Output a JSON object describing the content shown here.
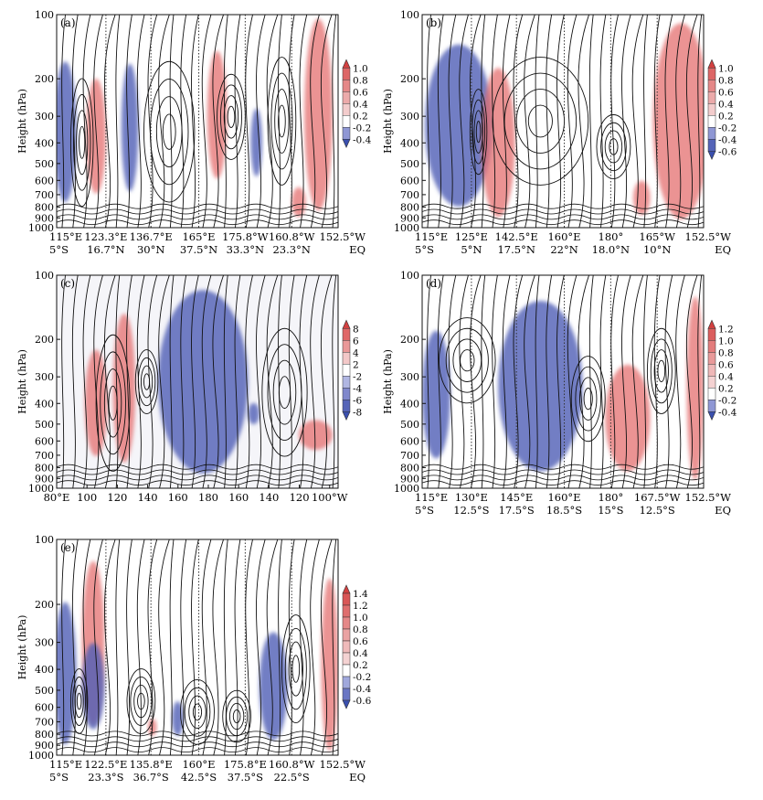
{
  "chart_data": [
    {
      "id": "a",
      "panel_label": "(a)",
      "type": "vertical-cross-section",
      "ylabel": "Height (hPa)",
      "y_ticks": [
        "100",
        "200",
        "300",
        "400",
        "500",
        "600",
        "700",
        "800",
        "900",
        "1000"
      ],
      "x_labels": [
        [
          "115°E",
          "5°S"
        ],
        [
          "123.3°E",
          "16.7°N"
        ],
        [
          "136.7°E",
          "30°N"
        ],
        [
          "165°E",
          "37.5°N"
        ],
        [
          "175.8°W",
          "33.3°N"
        ],
        [
          "160.8°W",
          "23.3°N"
        ],
        [
          "152.5°W",
          "EQ"
        ]
      ],
      "colorbar": [
        "1.0",
        "0.8",
        "0.6",
        "0.4",
        "0.2",
        "-0.2",
        "-0.4"
      ]
    },
    {
      "id": "b",
      "panel_label": "(b)",
      "type": "vertical-cross-section",
      "ylabel": "Height (hPa)",
      "y_ticks": [
        "100",
        "200",
        "300",
        "400",
        "500",
        "600",
        "700",
        "800",
        "900",
        "1000"
      ],
      "x_labels": [
        [
          "115°E",
          "5°S"
        ],
        [
          "125°E",
          "5°N"
        ],
        [
          "142.5°E",
          "17.5°N"
        ],
        [
          "160°E",
          "22°N"
        ],
        [
          "180°",
          "18.0°N"
        ],
        [
          "165°W",
          "10°N"
        ],
        [
          "152.5°W",
          "EQ"
        ]
      ],
      "colorbar": [
        "1.0",
        "0.8",
        "0.6",
        "0.4",
        "0.2",
        "-0.2",
        "-0.4",
        "-0.6"
      ]
    },
    {
      "id": "c",
      "panel_label": "(c)",
      "type": "vertical-cross-section",
      "ylabel": "Height (hPa)",
      "y_ticks": [
        "100",
        "200",
        "300",
        "400",
        "500",
        "600",
        "700",
        "800",
        "900",
        "1000"
      ],
      "x_ticks": [
        "80°E",
        "100",
        "120",
        "140",
        "160",
        "180",
        "160",
        "140",
        "120",
        "100°W"
      ],
      "colorbar": [
        "8",
        "6",
        "4",
        "2",
        "-2",
        "-4",
        "-6",
        "-8"
      ]
    },
    {
      "id": "d",
      "panel_label": "(d)",
      "type": "vertical-cross-section",
      "ylabel": "Height (hPa)",
      "y_ticks": [
        "100",
        "200",
        "300",
        "400",
        "500",
        "600",
        "700",
        "800",
        "900",
        "1000"
      ],
      "x_labels": [
        [
          "115°E",
          "5°S"
        ],
        [
          "130°E",
          "12.5°S"
        ],
        [
          "145°E",
          "17.5°S"
        ],
        [
          "160°E",
          "18.5°S"
        ],
        [
          "180°",
          "15°S"
        ],
        [
          "167.5°W",
          "12.5°S"
        ],
        [
          "152.5°W",
          "EQ"
        ]
      ],
      "colorbar": [
        "1.2",
        "1.0",
        "0.8",
        "0.6",
        "0.4",
        "0.2",
        "-0.2",
        "-0.4"
      ]
    },
    {
      "id": "e",
      "panel_label": "(e)",
      "type": "vertical-cross-section",
      "ylabel": "Height (hPa)",
      "y_ticks": [
        "100",
        "200",
        "300",
        "400",
        "500",
        "600",
        "700",
        "800",
        "900",
        "1000"
      ],
      "x_labels": [
        [
          "115°E",
          "5°S"
        ],
        [
          "122.5°E",
          "23.3°S"
        ],
        [
          "135.8°E",
          "36.7°S"
        ],
        [
          "160°E",
          "42.5°S"
        ],
        [
          "175.8°E",
          "37.5°S"
        ],
        [
          "160.8°W",
          "22.5°S"
        ],
        [
          "152.5°W",
          "EQ"
        ]
      ],
      "colorbar": [
        "1.4",
        "1.2",
        "1.0",
        "0.8",
        "0.6",
        "0.4",
        "0.2",
        "-0.2",
        "-0.4",
        "-0.6"
      ]
    }
  ]
}
